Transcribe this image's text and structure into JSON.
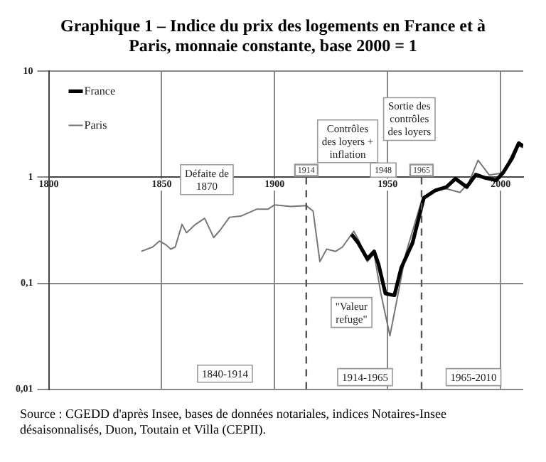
{
  "chart_data": {
    "type": "line",
    "title": "Graphique 1 – Indice du prix des logements en France et à Paris, monnaie constante, base 2000 = 1",
    "log": "y",
    "grid": true,
    "legend": "top left",
    "xlim": [
      1800,
      2010
    ],
    "xticks": [
      1800,
      1850,
      1900,
      1950,
      2000
    ],
    "ylim": [
      0.01,
      10
    ],
    "yticks": [
      10,
      1,
      {
        "value": 0.1,
        "label": "0,1"
      },
      {
        "value": 0.01,
        "label": "0,01"
      }
    ],
    "series": [
      {
        "name": "France",
        "color": "#000000",
        "x": [
          1934,
          1937,
          1941,
          1944,
          1946,
          1949,
          1953,
          1956,
          1961,
          1966,
          1971,
          1976,
          1980,
          1985,
          1989,
          1993,
          1998,
          2001,
          2005,
          2008,
          2010
        ],
        "values": [
          0.29,
          0.24,
          0.17,
          0.2,
          0.15,
          0.08,
          0.077,
          0.14,
          0.24,
          0.64,
          0.75,
          0.81,
          0.97,
          0.81,
          1.06,
          0.99,
          0.94,
          1.1,
          1.5,
          2.1,
          1.97
        ]
      },
      {
        "name": "Paris",
        "color": "#777777",
        "x": [
          1841,
          1846,
          1849,
          1852,
          1854,
          1856,
          1859,
          1861,
          1865,
          1869,
          1872,
          1873,
          1876,
          1880,
          1885,
          1892,
          1897,
          1900,
          1907,
          1914,
          1917,
          1920,
          1923,
          1927,
          1930,
          1935,
          1937,
          1941,
          1944,
          1947,
          1951,
          1954,
          1958,
          1965,
          1970,
          1976,
          1982,
          1986,
          1990,
          1995,
          2001,
          2007,
          2010
        ],
        "values": [
          0.2,
          0.22,
          0.25,
          0.23,
          0.21,
          0.22,
          0.36,
          0.3,
          0.36,
          0.41,
          0.3,
          0.27,
          0.32,
          0.42,
          0.43,
          0.5,
          0.5,
          0.55,
          0.53,
          0.54,
          0.48,
          0.16,
          0.21,
          0.2,
          0.22,
          0.31,
          0.26,
          0.16,
          0.19,
          0.08,
          0.032,
          0.068,
          0.19,
          0.6,
          0.75,
          0.78,
          0.72,
          0.9,
          1.45,
          1.05,
          1.1,
          2.0,
          1.9
        ]
      }
    ],
    "ref_lines": [
      {
        "axis": "x",
        "value": 1914,
        "label": "1914",
        "line_style": "dashed"
      },
      {
        "axis": "x",
        "value": 1965,
        "label": "1965",
        "line_style": "dashed"
      }
    ],
    "annotations": [
      {
        "text": "Défaite de 1870",
        "x": 1870,
        "y": 0.95
      },
      "Contrôles des loyers + inflation",
      "Sortie des contrôles des loyers",
      "1948",
      {
        "text": "\"Valeur refuge\"",
        "x": 1934,
        "y": 0.053
      },
      {
        "text": "1840-1914",
        "x": 1878,
        "y": 0.014
      },
      {
        "text": "1914-1965",
        "x": 1940,
        "y": 0.013
      },
      {
        "text": "1965-2010",
        "x": 1988,
        "y": 0.013
      },
      "Source : CGEDD d'après Insee, bases de données notariales, indices Notaires-Insee désaisonnalisés, Duon, Toutain et Villa (CEPII)."
    ]
  }
}
